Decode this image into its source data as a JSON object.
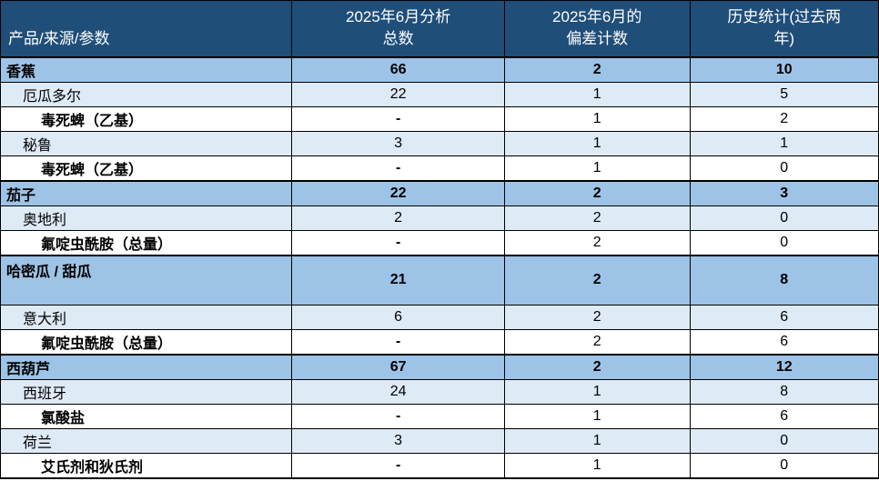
{
  "table": {
    "title_semantic": "pesticide-analysis-summary-table",
    "colors": {
      "header_bg": "#1F4E79",
      "header_text": "#FFFFFF",
      "category_row_bg": "#9DC3E6",
      "source_row_bg": "#DEEAF6",
      "parameter_row_bg": "#FFFFFF",
      "border": "#000000"
    },
    "columns": [
      {
        "id": "label",
        "label": "产品/来源/参数"
      },
      {
        "id": "analyzed",
        "label": "2025年6月分析\n总数"
      },
      {
        "id": "deviations",
        "label": "2025年6月的\n偏差计数"
      },
      {
        "id": "history",
        "label": "历史统计(过去两\n年)"
      }
    ],
    "rows": [
      {
        "type": "category",
        "tall": false,
        "label": "香蕉",
        "analyzed": "66",
        "deviations": "2",
        "history": "10"
      },
      {
        "type": "source",
        "tall": false,
        "label": "厄瓜多尔",
        "analyzed": "22",
        "deviations": "1",
        "history": "5"
      },
      {
        "type": "parameter",
        "tall": false,
        "label": "毒死蜱（乙基）",
        "analyzed": "-",
        "deviations": "1",
        "history": "2"
      },
      {
        "type": "source",
        "tall": false,
        "label": "秘鲁",
        "analyzed": "3",
        "deviations": "1",
        "history": "1"
      },
      {
        "type": "parameter",
        "tall": false,
        "label": "毒死蜱（乙基）",
        "analyzed": "-",
        "deviations": "1",
        "history": "0"
      },
      {
        "type": "category",
        "tall": false,
        "label": "茄子",
        "analyzed": "22",
        "deviations": "2",
        "history": "3"
      },
      {
        "type": "source",
        "tall": false,
        "label": "奥地利",
        "analyzed": "2",
        "deviations": "2",
        "history": "0"
      },
      {
        "type": "parameter",
        "tall": false,
        "label": "氟啶虫酰胺（总量）",
        "analyzed": "-",
        "deviations": "2",
        "history": "0"
      },
      {
        "type": "category",
        "tall": true,
        "label": "哈密瓜 / 甜瓜",
        "analyzed": "21",
        "deviations": "2",
        "history": "8"
      },
      {
        "type": "source",
        "tall": false,
        "label": "意大利",
        "analyzed": "6",
        "deviations": "2",
        "history": "6"
      },
      {
        "type": "parameter",
        "tall": false,
        "label": "氟啶虫酰胺（总量）",
        "analyzed": "-",
        "deviations": "2",
        "history": "6"
      },
      {
        "type": "category",
        "tall": false,
        "label": "西葫芦",
        "analyzed": "67",
        "deviations": "2",
        "history": "12"
      },
      {
        "type": "source",
        "tall": false,
        "label": "西班牙",
        "analyzed": "24",
        "deviations": "1",
        "history": "8"
      },
      {
        "type": "parameter",
        "tall": false,
        "label": "氯酸盐",
        "analyzed": "-",
        "deviations": "1",
        "history": "6"
      },
      {
        "type": "source",
        "tall": false,
        "label": "荷兰",
        "analyzed": "3",
        "deviations": "1",
        "history": "0"
      },
      {
        "type": "parameter",
        "tall": false,
        "label": "艾氏剂和狄氏剂",
        "analyzed": "-",
        "deviations": "1",
        "history": "0"
      }
    ]
  }
}
